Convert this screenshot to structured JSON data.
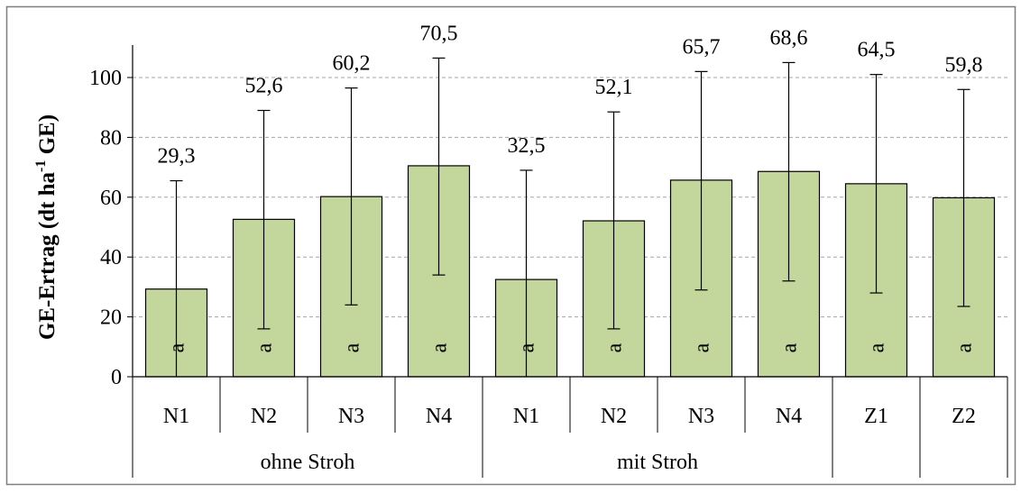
{
  "chart_data": {
    "type": "bar",
    "title": "",
    "xlabel": "",
    "ylabel": {
      "main": "GE-Ertrag (dt ha",
      "superscript": "-1",
      "tail": " GE)"
    },
    "ylim": [
      0,
      110
    ],
    "yticks": [
      0,
      20,
      40,
      60,
      80,
      100
    ],
    "grid": true,
    "legend": "none",
    "bar_color": "#c3d69b",
    "categories": [
      "N1",
      "N2",
      "N3",
      "N4",
      "N1",
      "N2",
      "N3",
      "N4",
      "Z1",
      "Z2"
    ],
    "groups": [
      {
        "label": "ohne Stroh",
        "count": 4
      },
      {
        "label": "mit Stroh",
        "count": 4
      },
      {
        "label": "",
        "count": 1
      },
      {
        "label": "",
        "count": 1
      }
    ],
    "values": [
      29.3,
      52.6,
      60.2,
      70.5,
      32.5,
      52.1,
      65.7,
      68.6,
      64.5,
      59.8
    ],
    "value_labels": [
      "29,3",
      "52,6",
      "60,2",
      "70,5",
      "32,5",
      "52,1",
      "65,7",
      "68,6",
      "64,5",
      "59,8"
    ],
    "error_low": [
      0,
      16,
      24,
      34,
      0,
      16,
      29,
      32,
      28,
      23.5
    ],
    "error_high": [
      65.5,
      89,
      96.5,
      106.5,
      69,
      88.5,
      102,
      105,
      101,
      96
    ],
    "significance_letters": [
      "a",
      "a",
      "a",
      "a",
      "a",
      "a",
      "a",
      "a",
      "a",
      "a"
    ]
  }
}
